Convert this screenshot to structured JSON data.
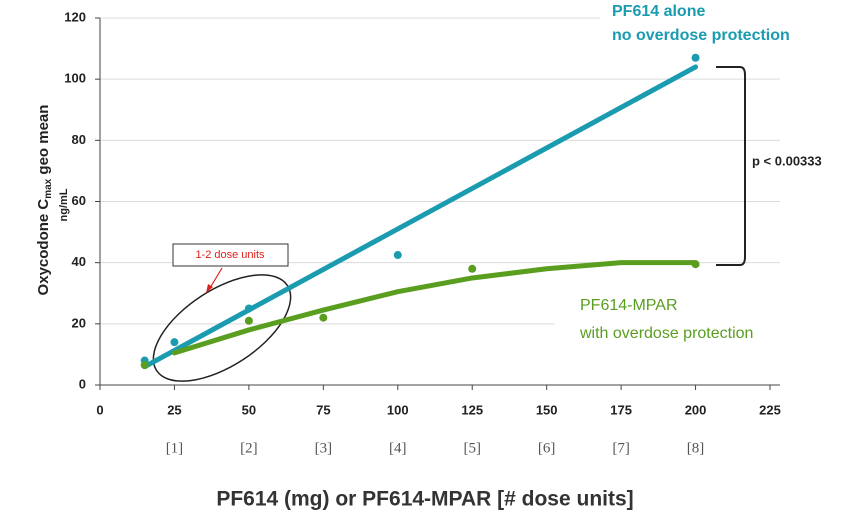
{
  "chart_data": {
    "type": "scatter",
    "xlabel": "PF614 (mg) or PF614-MPAR [# dose units]",
    "ylabel": {
      "main": "Oxycodone C",
      "sub": "max",
      "rest": " geo mean",
      "units": "ng/mL"
    },
    "xlim": [
      0,
      225
    ],
    "ylim": [
      0,
      120
    ],
    "xticks": [
      0,
      25,
      50,
      75,
      100,
      125,
      150,
      175,
      200,
      225
    ],
    "yticks": [
      0,
      20,
      40,
      60,
      80,
      100,
      120
    ],
    "grid": true,
    "dose_units": {
      "x": [
        25,
        50,
        75,
        100,
        125,
        150,
        175,
        200
      ],
      "labels": [
        "[1]",
        "[2]",
        "[3]",
        "[4]",
        "[5]",
        "[6]",
        "[7]",
        "[8]"
      ]
    },
    "series": [
      {
        "color": "#1a9bb0",
        "x": [
          15,
          25,
          50,
          100,
          200
        ],
        "values": [
          8,
          14,
          25,
          42.5,
          107
        ]
      },
      {
        "color": "#5a9e1f",
        "x": [
          15,
          50,
          75,
          125,
          200
        ],
        "values": [
          6.5,
          21,
          22,
          38,
          39.5
        ]
      }
    ],
    "trendlines": [
      {
        "color": "#1a9bb0",
        "x": [
          15,
          200
        ],
        "values": [
          6,
          104
        ]
      },
      {
        "color": "#5a9e1f",
        "x": [
          25,
          50,
          75,
          100,
          125,
          150,
          175,
          200
        ],
        "values": [
          10.5,
          18,
          24.5,
          30.5,
          35,
          38,
          40,
          40
        ]
      }
    ],
    "annotations": {
      "pf614_line1": "PF614 alone",
      "pf614_line2": "no overdose protection",
      "mpar_line1": "PF614-MPAR",
      "mpar_line2": "with overdose protection",
      "p_value": "p < 0.00333",
      "dose_box": "1-2 dose units"
    }
  }
}
